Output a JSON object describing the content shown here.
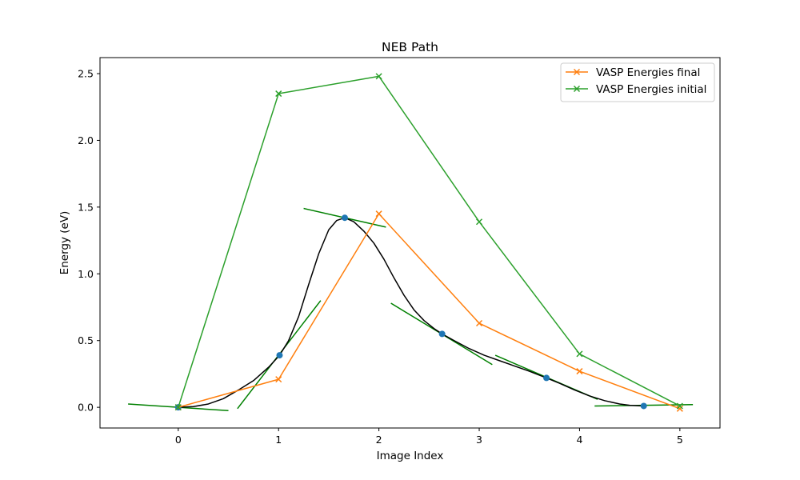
{
  "chart_data": {
    "type": "line",
    "title": "NEB Path",
    "xlabel": "Image Index",
    "ylabel": "Energy (eV)",
    "xlim": [
      -0.78,
      5.4
    ],
    "ylim": [
      -0.155,
      2.62
    ],
    "xticks": [
      0,
      1,
      2,
      3,
      4,
      5
    ],
    "yticks": [
      0.0,
      0.5,
      1.0,
      1.5,
      2.0,
      2.5
    ],
    "xtick_labels": [
      "0",
      "1",
      "2",
      "3",
      "4",
      "5"
    ],
    "ytick_labels": [
      "0.0",
      "0.5",
      "1.0",
      "1.5",
      "2.0",
      "2.5"
    ],
    "grid": false,
    "legend_position": "upper right",
    "series": [
      {
        "name": "VASP Energies final",
        "color": "#ff7f0e",
        "marker": "x",
        "x": [
          0,
          1,
          2,
          3,
          4,
          5
        ],
        "y": [
          0.0,
          0.21,
          1.45,
          0.63,
          0.27,
          -0.01
        ]
      },
      {
        "name": "VASP Energies initial",
        "color": "#2ca02c",
        "marker": "x",
        "x": [
          0,
          1,
          2,
          3,
          4,
          5
        ],
        "y": [
          0.0,
          2.35,
          2.48,
          1.39,
          0.4,
          0.01
        ]
      }
    ],
    "neb_points": {
      "color": "#1f77b4",
      "marker": "o",
      "x": [
        0.0,
        1.01,
        1.66,
        2.63,
        3.67,
        4.64
      ],
      "y": [
        0.0,
        0.39,
        1.42,
        0.55,
        0.22,
        0.01
      ]
    },
    "spline": {
      "color": "#000000",
      "x": [
        0.0,
        0.15,
        0.3,
        0.45,
        0.6,
        0.75,
        0.9,
        1.01,
        1.1,
        1.2,
        1.3,
        1.4,
        1.5,
        1.58,
        1.66,
        1.75,
        1.85,
        1.95,
        2.05,
        2.15,
        2.25,
        2.35,
        2.45,
        2.55,
        2.63,
        2.75,
        2.9,
        3.05,
        3.2,
        3.35,
        3.5,
        3.67,
        3.8,
        3.95,
        4.1,
        4.25,
        4.4,
        4.5,
        4.64
      ],
      "y": [
        0.0,
        0.005,
        0.025,
        0.065,
        0.13,
        0.2,
        0.3,
        0.39,
        0.5,
        0.68,
        0.92,
        1.15,
        1.33,
        1.4,
        1.42,
        1.39,
        1.32,
        1.23,
        1.11,
        0.97,
        0.84,
        0.73,
        0.65,
        0.59,
        0.55,
        0.5,
        0.44,
        0.39,
        0.35,
        0.31,
        0.27,
        0.22,
        0.18,
        0.13,
        0.085,
        0.05,
        0.025,
        0.015,
        0.01
      ]
    },
    "tangents": {
      "color": "#008000",
      "segments": [
        {
          "x": [
            -0.5,
            0.5
          ],
          "y": [
            0.025,
            -0.025
          ]
        },
        {
          "x": [
            0.59,
            1.42
          ],
          "y": [
            -0.01,
            0.8
          ]
        },
        {
          "x": [
            1.25,
            2.07
          ],
          "y": [
            1.49,
            1.35
          ]
        },
        {
          "x": [
            2.12,
            3.13
          ],
          "y": [
            0.78,
            0.32
          ]
        },
        {
          "x": [
            3.16,
            4.18
          ],
          "y": [
            0.39,
            0.06
          ]
        },
        {
          "x": [
            4.15,
            5.13
          ],
          "y": [
            0.01,
            0.02
          ]
        }
      ]
    }
  }
}
